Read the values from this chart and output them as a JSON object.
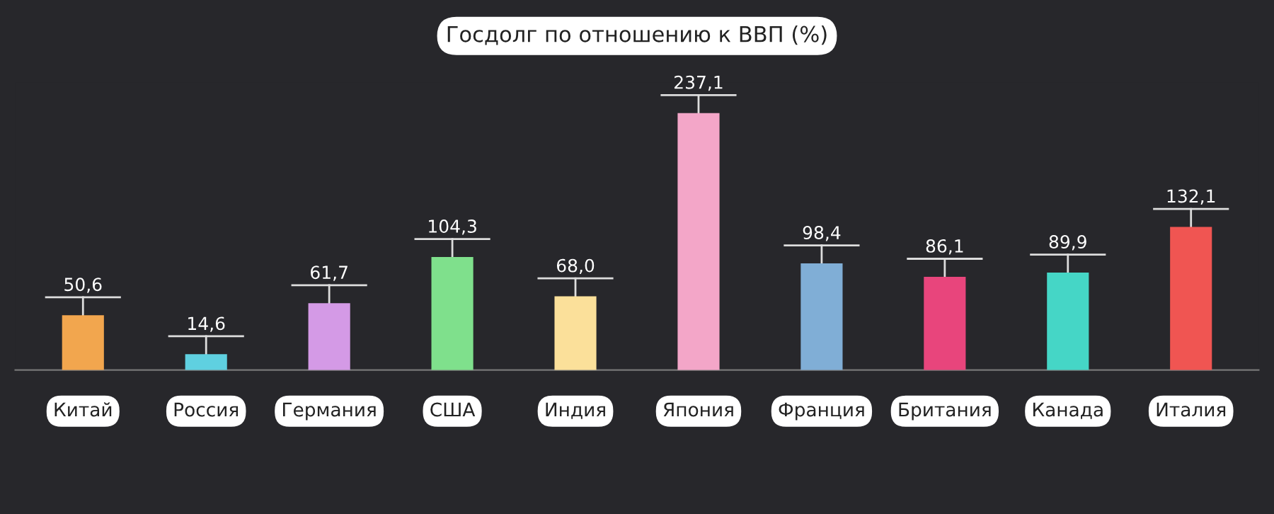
{
  "chart_data": {
    "type": "bar",
    "title": "Госдолг по отношению к ВВП (%)",
    "categories": [
      "Китай",
      "Россия",
      "Германия",
      "США",
      "Индия",
      "Япония",
      "Франция",
      "Британия",
      "Канада",
      "Италия"
    ],
    "values": [
      50.6,
      14.6,
      61.7,
      104.3,
      68.0,
      237.1,
      98.4,
      86.1,
      89.9,
      132.1
    ],
    "value_labels": [
      "50,6",
      "14,6",
      "61,7",
      "104,3",
      "68,0",
      "237,1",
      "98,4",
      "86,1",
      "89,9",
      "132,1"
    ],
    "colors": [
      "#f2a64e",
      "#5fd0e0",
      "#d49ae6",
      "#7fe08c",
      "#fbe09a",
      "#f3a6c8",
      "#80aed6",
      "#e8457c",
      "#45d6c6",
      "#f05552"
    ]
  }
}
